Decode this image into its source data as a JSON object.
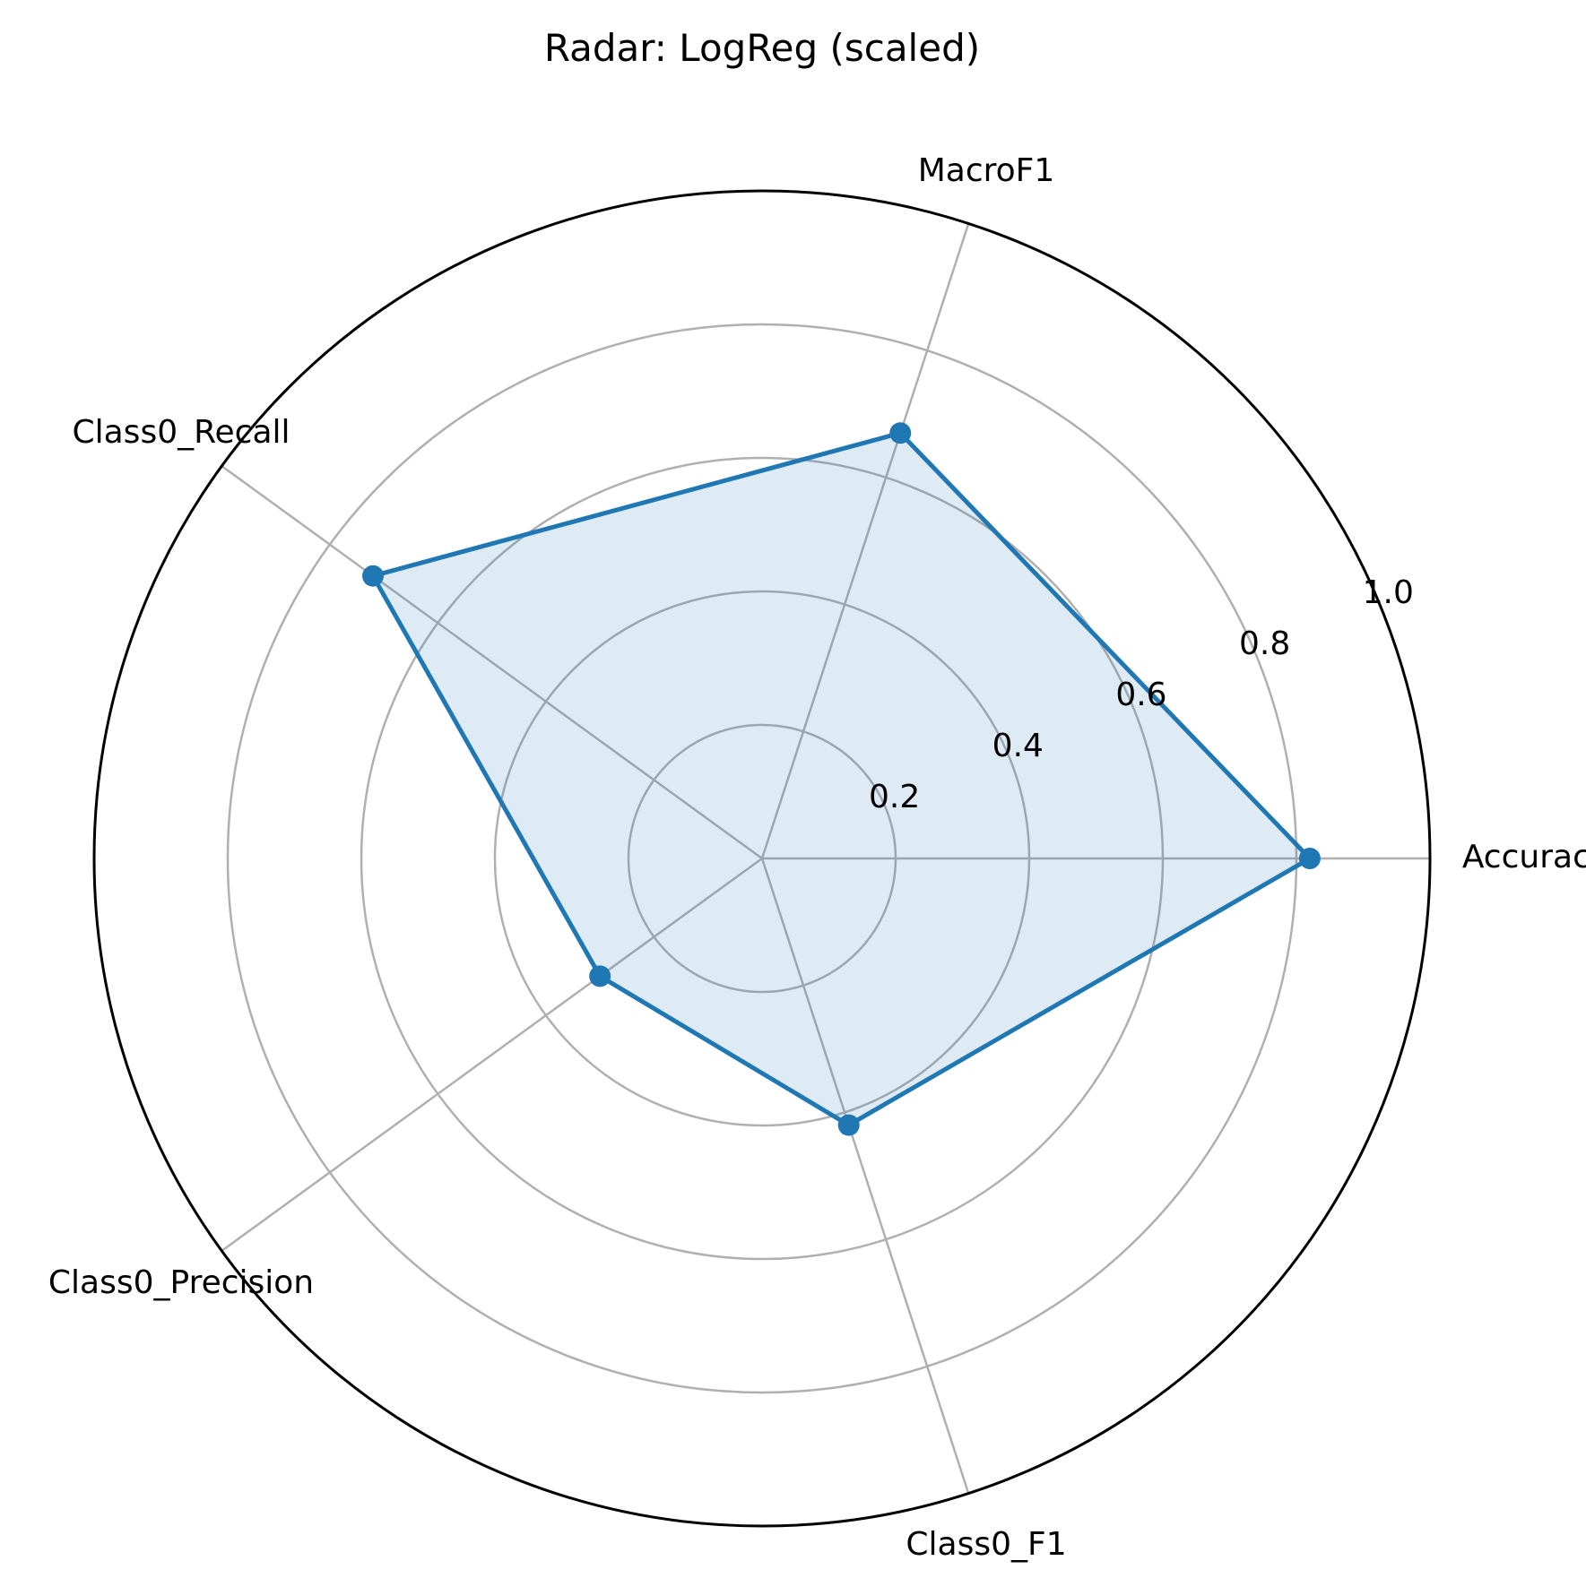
{
  "chart_data": {
    "type": "radar",
    "title": "Radar: LogReg (scaled)",
    "categories": [
      "Accuracy",
      "MacroF1",
      "Class0_Recall",
      "Class0_Precision",
      "Class0_F1"
    ],
    "series": [
      {
        "values": [
          0.82,
          0.67,
          0.72,
          0.3,
          0.42
        ]
      }
    ],
    "rlim": [
      0,
      1.0
    ],
    "r_ticks": [
      "0.2",
      "0.4",
      "0.6",
      "0.8",
      "1.0"
    ],
    "grid": true,
    "colors": {
      "line": "#1f77b4",
      "fill": "#1f77b4",
      "fill_opacity": 0.15,
      "grid": "#b0b0b0",
      "frame": "#000000"
    }
  }
}
